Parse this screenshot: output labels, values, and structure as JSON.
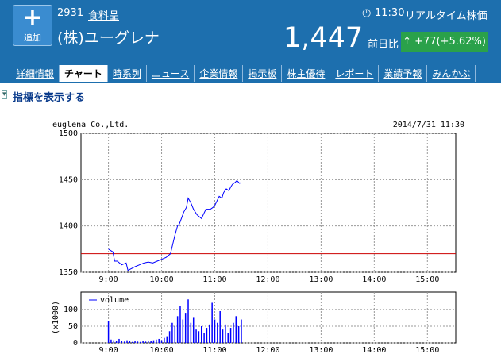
{
  "header": {
    "add_button": "追加",
    "code": "2931",
    "sector": "食料品",
    "name": "(株)ユーグレナ",
    "time": "11:30",
    "realtime": "リアルタイム株価",
    "price": "1,447",
    "change_label": "前日比",
    "change": "+77(+5.62%)"
  },
  "tabs": [
    "詳細情報",
    "チャート",
    "時系列",
    "ニュース",
    "企業情報",
    "掲示板",
    "株主優待",
    "レポート",
    "業績予報",
    "みんかぶ"
  ],
  "indicator_link": "指標を表示する",
  "chart_data": [
    {
      "type": "line",
      "title": "euglena Co.,Ltd.",
      "subtitle": "2014/7/31 11:30",
      "color": "#0000ff",
      "x": [
        540,
        545,
        547,
        550,
        555,
        560,
        562,
        570,
        575,
        580,
        585,
        590,
        595,
        600,
        605,
        610,
        612,
        615,
        618,
        620,
        625,
        628,
        630,
        633,
        636,
        640,
        645,
        648,
        650,
        655,
        658,
        660,
        663,
        665,
        668,
        670,
        673,
        676,
        678,
        680,
        683,
        685,
        688,
        690
      ],
      "values": [
        1375,
        1372,
        1362,
        1362,
        1358,
        1360,
        1352,
        1356,
        1358,
        1360,
        1361,
        1360,
        1362,
        1364,
        1366,
        1370,
        1378,
        1390,
        1400,
        1402,
        1415,
        1420,
        1430,
        1425,
        1418,
        1412,
        1408,
        1414,
        1418,
        1418,
        1420,
        1422,
        1428,
        1432,
        1430,
        1436,
        1440,
        1438,
        1442,
        1445,
        1447,
        1449,
        1446,
        1447
      ],
      "reference_line": {
        "value": 1370,
        "color": "#cc0000"
      },
      "xlim": [
        509,
        932
      ],
      "xticks": [
        {
          "value": 540,
          "label": "9:00"
        },
        {
          "value": 600,
          "label": "10:00"
        },
        {
          "value": 660,
          "label": "11:00"
        },
        {
          "value": 720,
          "label": "12:00"
        },
        {
          "value": 780,
          "label": "13:00"
        },
        {
          "value": 840,
          "label": "14:00"
        },
        {
          "value": 900,
          "label": "15:00"
        }
      ],
      "ylim": [
        1350,
        1500
      ],
      "yticks": [
        1350,
        1400,
        1450,
        1500
      ],
      "grid": true
    },
    {
      "type": "bar",
      "ylabel": "(x1000)",
      "x": [
        540,
        543,
        546,
        549,
        552,
        555,
        558,
        561,
        564,
        567,
        570,
        573,
        576,
        579,
        582,
        585,
        588,
        591,
        594,
        597,
        600,
        603,
        606,
        609,
        612,
        615,
        618,
        621,
        624,
        627,
        630,
        633,
        636,
        639,
        642,
        645,
        648,
        651,
        654,
        657,
        660,
        663,
        666,
        669,
        672,
        675,
        678,
        681,
        684,
        687,
        690
      ],
      "series": [
        {
          "name": "volume",
          "color": "#0000ff",
          "values": [
            65,
            10,
            8,
            5,
            12,
            6,
            4,
            8,
            5,
            3,
            6,
            4,
            3,
            5,
            4,
            6,
            5,
            8,
            10,
            12,
            8,
            15,
            20,
            35,
            60,
            50,
            80,
            110,
            70,
            90,
            130,
            60,
            75,
            40,
            35,
            50,
            30,
            45,
            55,
            120,
            70,
            60,
            95,
            40,
            55,
            30,
            45,
            60,
            80,
            50,
            70
          ]
        }
      ],
      "xlim": [
        509,
        932
      ],
      "xticks": [
        {
          "value": 540,
          "label": "9:00"
        },
        {
          "value": 600,
          "label": "10:00"
        },
        {
          "value": 660,
          "label": "11:00"
        },
        {
          "value": 720,
          "label": "12:00"
        },
        {
          "value": 780,
          "label": "13:00"
        },
        {
          "value": 840,
          "label": "14:00"
        },
        {
          "value": 900,
          "label": "15:00"
        }
      ],
      "ylim": [
        0,
        152
      ],
      "yticks": [
        0,
        50,
        100
      ],
      "grid": true
    }
  ]
}
